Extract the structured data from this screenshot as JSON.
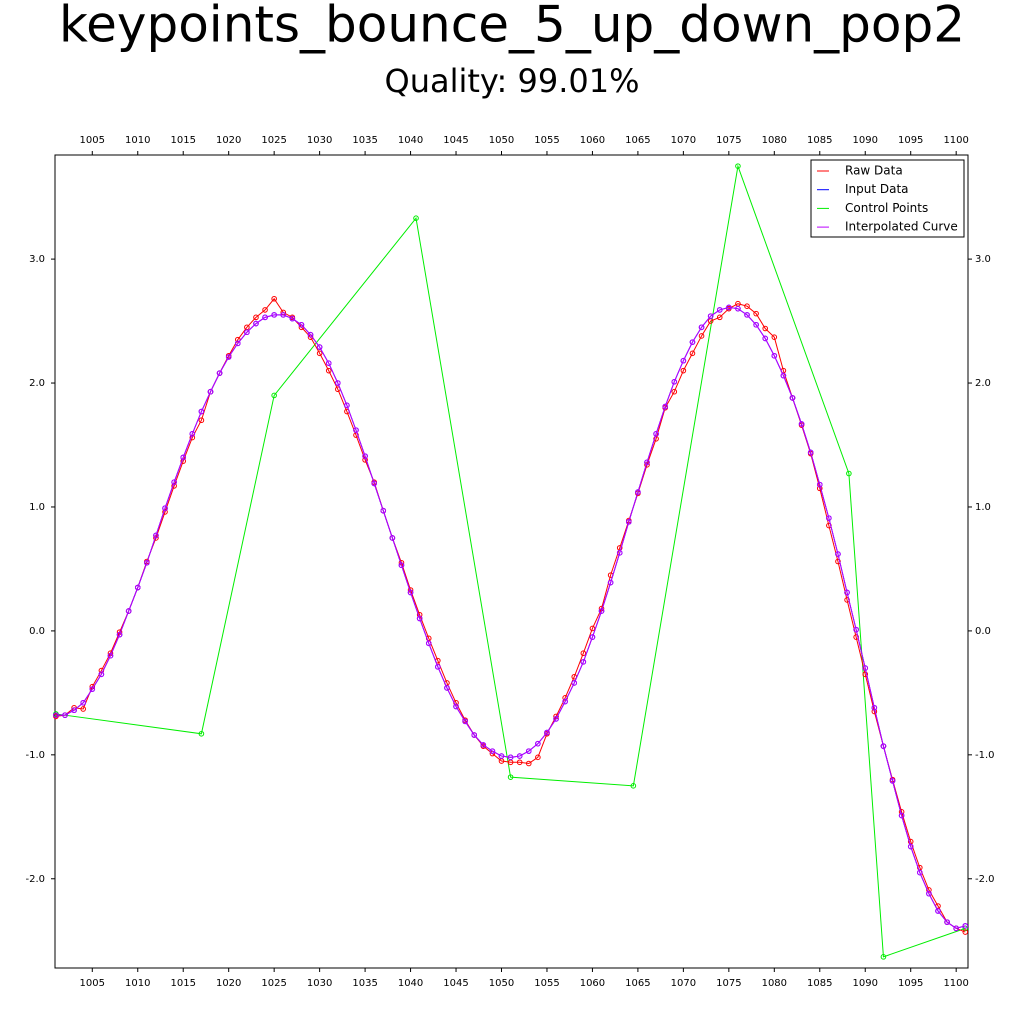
{
  "chart_data": {
    "type": "line",
    "title": "keypoints_bounce_5_up_down_pop2",
    "subtitle": "Quality: 99.01%",
    "x": [
      1001,
      1002,
      1003,
      1004,
      1005,
      1006,
      1007,
      1008,
      1009,
      1010,
      1011,
      1012,
      1013,
      1014,
      1015,
      1016,
      1017,
      1018,
      1019,
      1020,
      1021,
      1022,
      1023,
      1024,
      1025,
      1026,
      1027,
      1028,
      1029,
      1030,
      1031,
      1032,
      1033,
      1034,
      1035,
      1036,
      1037,
      1038,
      1039,
      1040,
      1041,
      1042,
      1043,
      1044,
      1045,
      1046,
      1047,
      1048,
      1049,
      1050,
      1051,
      1052,
      1053,
      1054,
      1055,
      1056,
      1057,
      1058,
      1059,
      1060,
      1061,
      1062,
      1063,
      1064,
      1065,
      1066,
      1067,
      1068,
      1069,
      1070,
      1071,
      1072,
      1073,
      1074,
      1075,
      1076,
      1077,
      1078,
      1079,
      1080,
      1081,
      1082,
      1083,
      1084,
      1085,
      1086,
      1087,
      1088,
      1089,
      1090,
      1091,
      1092,
      1093,
      1094,
      1095,
      1096,
      1097,
      1098,
      1099,
      1100,
      1101
    ],
    "series": [
      {
        "name": "Raw Data",
        "color": "#ff0000",
        "values": [
          -0.69,
          -0.68,
          -0.62,
          -0.63,
          -0.45,
          -0.32,
          -0.18,
          -0.01,
          0.16,
          0.35,
          0.56,
          0.75,
          0.96,
          1.17,
          1.37,
          1.56,
          1.7,
          1.93,
          2.08,
          2.22,
          2.35,
          2.45,
          2.53,
          2.59,
          2.68,
          2.57,
          2.53,
          2.45,
          2.37,
          2.24,
          2.1,
          1.95,
          1.77,
          1.58,
          1.38,
          1.2,
          0.97,
          0.75,
          0.55,
          0.33,
          0.13,
          -0.06,
          -0.24,
          -0.42,
          -0.58,
          -0.72,
          -0.84,
          -0.93,
          -0.99,
          -1.05,
          -1.06,
          -1.06,
          -1.07,
          -1.02,
          -0.83,
          -0.69,
          -0.54,
          -0.37,
          -0.18,
          0.02,
          0.18,
          0.45,
          0.67,
          0.89,
          1.11,
          1.34,
          1.55,
          1.8,
          1.93,
          2.1,
          2.24,
          2.38,
          2.5,
          2.53,
          2.6,
          2.64,
          2.62,
          2.56,
          2.44,
          2.37,
          2.1,
          1.88,
          1.66,
          1.43,
          1.15,
          0.85,
          0.56,
          0.25,
          -0.05,
          -0.35,
          -0.65,
          -0.93,
          -1.2,
          -1.46,
          -1.7,
          -1.91,
          -2.09,
          -2.22,
          -2.35,
          -2.4,
          -2.43
        ]
      },
      {
        "name": "Input Data",
        "color": "#0000ff",
        "values": [
          -0.68,
          -0.68,
          -0.64,
          -0.58,
          -0.47,
          -0.35,
          -0.2,
          -0.03,
          0.16,
          0.35,
          0.55,
          0.77,
          0.99,
          1.2,
          1.4,
          1.59,
          1.77,
          1.93,
          2.08,
          2.21,
          2.32,
          2.41,
          2.48,
          2.53,
          2.55,
          2.55,
          2.52,
          2.47,
          2.39,
          2.29,
          2.16,
          2.0,
          1.82,
          1.62,
          1.41,
          1.19,
          0.97,
          0.75,
          0.53,
          0.31,
          0.1,
          -0.1,
          -0.29,
          -0.46,
          -0.61,
          -0.73,
          -0.84,
          -0.92,
          -0.97,
          -1.01,
          -1.02,
          -1.01,
          -0.97,
          -0.91,
          -0.82,
          -0.71,
          -0.57,
          -0.42,
          -0.25,
          -0.05,
          0.16,
          0.39,
          0.63,
          0.88,
          1.12,
          1.36,
          1.59,
          1.81,
          2.01,
          2.18,
          2.33,
          2.45,
          2.54,
          2.59,
          2.61,
          2.6,
          2.55,
          2.47,
          2.36,
          2.22,
          2.06,
          1.88,
          1.67,
          1.44,
          1.18,
          0.91,
          0.62,
          0.31,
          0.01,
          -0.3,
          -0.62,
          -0.93,
          -1.21,
          -1.49,
          -1.74,
          -1.95,
          -2.12,
          -2.26,
          -2.35,
          -2.4,
          -2.38
        ]
      },
      {
        "name": "Control Points",
        "color": "#00ee00",
        "x": [
          1001,
          1017,
          1025,
          1040.6,
          1051,
          1064.5,
          1076,
          1088.2,
          1092,
          1101
        ],
        "values": [
          -0.67,
          -0.83,
          1.9,
          3.33,
          -1.18,
          -1.25,
          3.75,
          1.27,
          -2.63,
          -2.4
        ]
      },
      {
        "name": "Interpolated Curve",
        "color": "#bb00ff",
        "values": [
          -0.68,
          -0.68,
          -0.64,
          -0.58,
          -0.47,
          -0.35,
          -0.2,
          -0.03,
          0.16,
          0.35,
          0.55,
          0.77,
          0.99,
          1.2,
          1.4,
          1.59,
          1.77,
          1.93,
          2.08,
          2.21,
          2.32,
          2.41,
          2.48,
          2.53,
          2.55,
          2.55,
          2.52,
          2.47,
          2.39,
          2.29,
          2.16,
          2.0,
          1.82,
          1.62,
          1.41,
          1.19,
          0.97,
          0.75,
          0.53,
          0.31,
          0.1,
          -0.1,
          -0.29,
          -0.46,
          -0.61,
          -0.73,
          -0.84,
          -0.92,
          -0.97,
          -1.01,
          -1.02,
          -1.01,
          -0.97,
          -0.91,
          -0.82,
          -0.71,
          -0.57,
          -0.42,
          -0.25,
          -0.05,
          0.16,
          0.39,
          0.63,
          0.88,
          1.12,
          1.36,
          1.59,
          1.81,
          2.01,
          2.18,
          2.33,
          2.45,
          2.54,
          2.59,
          2.61,
          2.6,
          2.55,
          2.47,
          2.36,
          2.22,
          2.06,
          1.88,
          1.67,
          1.44,
          1.18,
          0.91,
          0.62,
          0.31,
          0.01,
          -0.3,
          -0.62,
          -0.93,
          -1.21,
          -1.49,
          -1.74,
          -1.95,
          -2.12,
          -2.26,
          -2.35,
          -2.4,
          -2.38
        ]
      }
    ],
    "xlim": [
      1000.9,
      1101.3
    ],
    "ylim": [
      -2.72,
      3.84
    ],
    "xticks": [
      1005,
      1010,
      1015,
      1020,
      1025,
      1030,
      1035,
      1040,
      1045,
      1050,
      1055,
      1060,
      1065,
      1070,
      1075,
      1080,
      1085,
      1090,
      1095,
      1100
    ],
    "yticks": [
      {
        "value": -2,
        "label": "-2.0"
      },
      {
        "value": -1,
        "label": "-1.0"
      },
      {
        "value": 0,
        "label": "0.0"
      },
      {
        "value": 1,
        "label": "1.0"
      },
      {
        "value": 2,
        "label": "2.0"
      },
      {
        "value": 3,
        "label": "3.0"
      }
    ],
    "legend": "upper right",
    "markers": true
  }
}
